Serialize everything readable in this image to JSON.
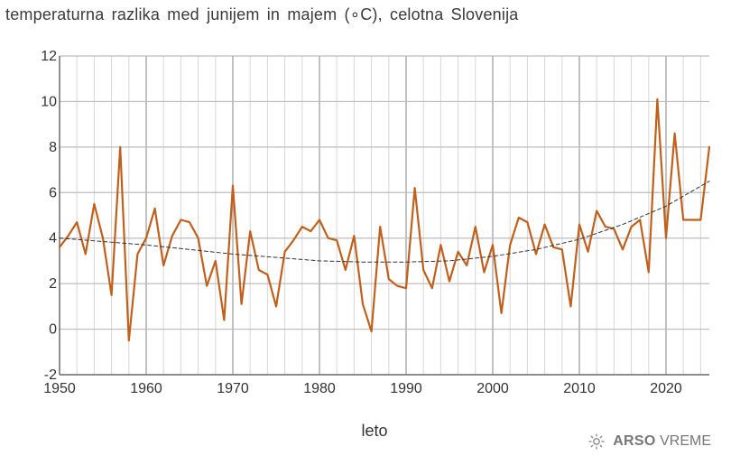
{
  "chart_data": {
    "type": "line",
    "title": "temperaturna razlika med junijem in majem (∘C), celotna Slovenija",
    "xlabel": "leto",
    "ylabel": "",
    "xlim": [
      1950,
      2025
    ],
    "ylim": [
      -2,
      12
    ],
    "xticks": [
      1950,
      1960,
      1970,
      1980,
      1990,
      2000,
      2010,
      2020
    ],
    "yticks": [
      -2,
      0,
      2,
      4,
      6,
      8,
      10,
      12
    ],
    "grid": true,
    "series": [
      {
        "name": "temperaturna razlika",
        "color": "#c0601c",
        "style": "solid",
        "x": [
          1950,
          1951,
          1952,
          1953,
          1954,
          1955,
          1956,
          1957,
          1958,
          1959,
          1960,
          1961,
          1962,
          1963,
          1964,
          1965,
          1966,
          1967,
          1968,
          1969,
          1970,
          1971,
          1972,
          1973,
          1974,
          1975,
          1976,
          1977,
          1978,
          1979,
          1980,
          1981,
          1982,
          1983,
          1984,
          1985,
          1986,
          1987,
          1988,
          1989,
          1990,
          1991,
          1992,
          1993,
          1994,
          1995,
          1996,
          1997,
          1998,
          1999,
          2000,
          2001,
          2002,
          2003,
          2004,
          2005,
          2006,
          2007,
          2008,
          2009,
          2010,
          2011,
          2012,
          2013,
          2014,
          2015,
          2016,
          2017,
          2018,
          2019,
          2020,
          2021,
          2022,
          2023,
          2024,
          2025
        ],
        "values": [
          3.6,
          4.1,
          4.7,
          3.3,
          5.5,
          4.0,
          1.5,
          8.0,
          -0.5,
          3.3,
          4.0,
          5.3,
          2.8,
          4.1,
          4.8,
          4.7,
          4.0,
          1.9,
          3.0,
          0.4,
          6.3,
          1.1,
          4.3,
          2.6,
          2.4,
          1.0,
          3.4,
          3.9,
          4.5,
          4.3,
          4.8,
          4.0,
          3.9,
          2.6,
          4.1,
          1.1,
          -0.1,
          4.5,
          2.2,
          1.9,
          1.8,
          6.2,
          2.6,
          1.8,
          3.7,
          2.1,
          3.4,
          2.8,
          4.5,
          2.5,
          3.7,
          0.7,
          3.7,
          4.9,
          4.7,
          3.3,
          4.6,
          3.6,
          3.5,
          1.0,
          4.6,
          3.4,
          5.2,
          4.5,
          4.4,
          3.5,
          4.5,
          4.8,
          2.5,
          10.1,
          4.0,
          8.6,
          4.8,
          4.8,
          4.8,
          8.0
        ]
      },
      {
        "name": "trend",
        "color": "#333333",
        "style": "dashed",
        "x": [
          1950,
          1955,
          1960,
          1965,
          1970,
          1975,
          1980,
          1985,
          1990,
          1995,
          2000,
          2005,
          2010,
          2015,
          2020,
          2025
        ],
        "values": [
          4.0,
          3.85,
          3.7,
          3.5,
          3.3,
          3.15,
          3.0,
          2.95,
          2.95,
          3.0,
          3.2,
          3.5,
          3.95,
          4.6,
          5.4,
          6.5
        ]
      }
    ]
  },
  "branding": {
    "logo_icon": "sun-icon",
    "bold": "ARSO",
    "light": "VREME"
  }
}
